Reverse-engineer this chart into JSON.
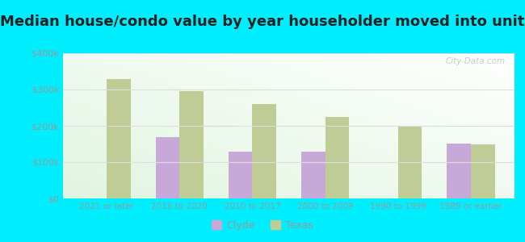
{
  "title": "Median house/condo value by year householder moved into unit",
  "categories": [
    "2021 or later",
    "2018 to 2020",
    "2010 to 2017",
    "2000 to 2009",
    "1990 to 1999",
    "1989 or earlier"
  ],
  "clyde_values": [
    null,
    170000,
    130000,
    128000,
    null,
    152000
  ],
  "texas_values": [
    330000,
    295000,
    260000,
    225000,
    197000,
    150000
  ],
  "clyde_color": "#c8a8d8",
  "texas_color": "#c0cc96",
  "outer_background": "#00eeff",
  "ylim": [
    0,
    400000
  ],
  "yticks": [
    0,
    100000,
    200000,
    300000,
    400000
  ],
  "ytick_labels": [
    "$0",
    "$100k",
    "$200k",
    "$300k",
    "$400k"
  ],
  "title_fontsize": 13,
  "tick_color": "#999999",
  "watermark": "City-Data.com"
}
